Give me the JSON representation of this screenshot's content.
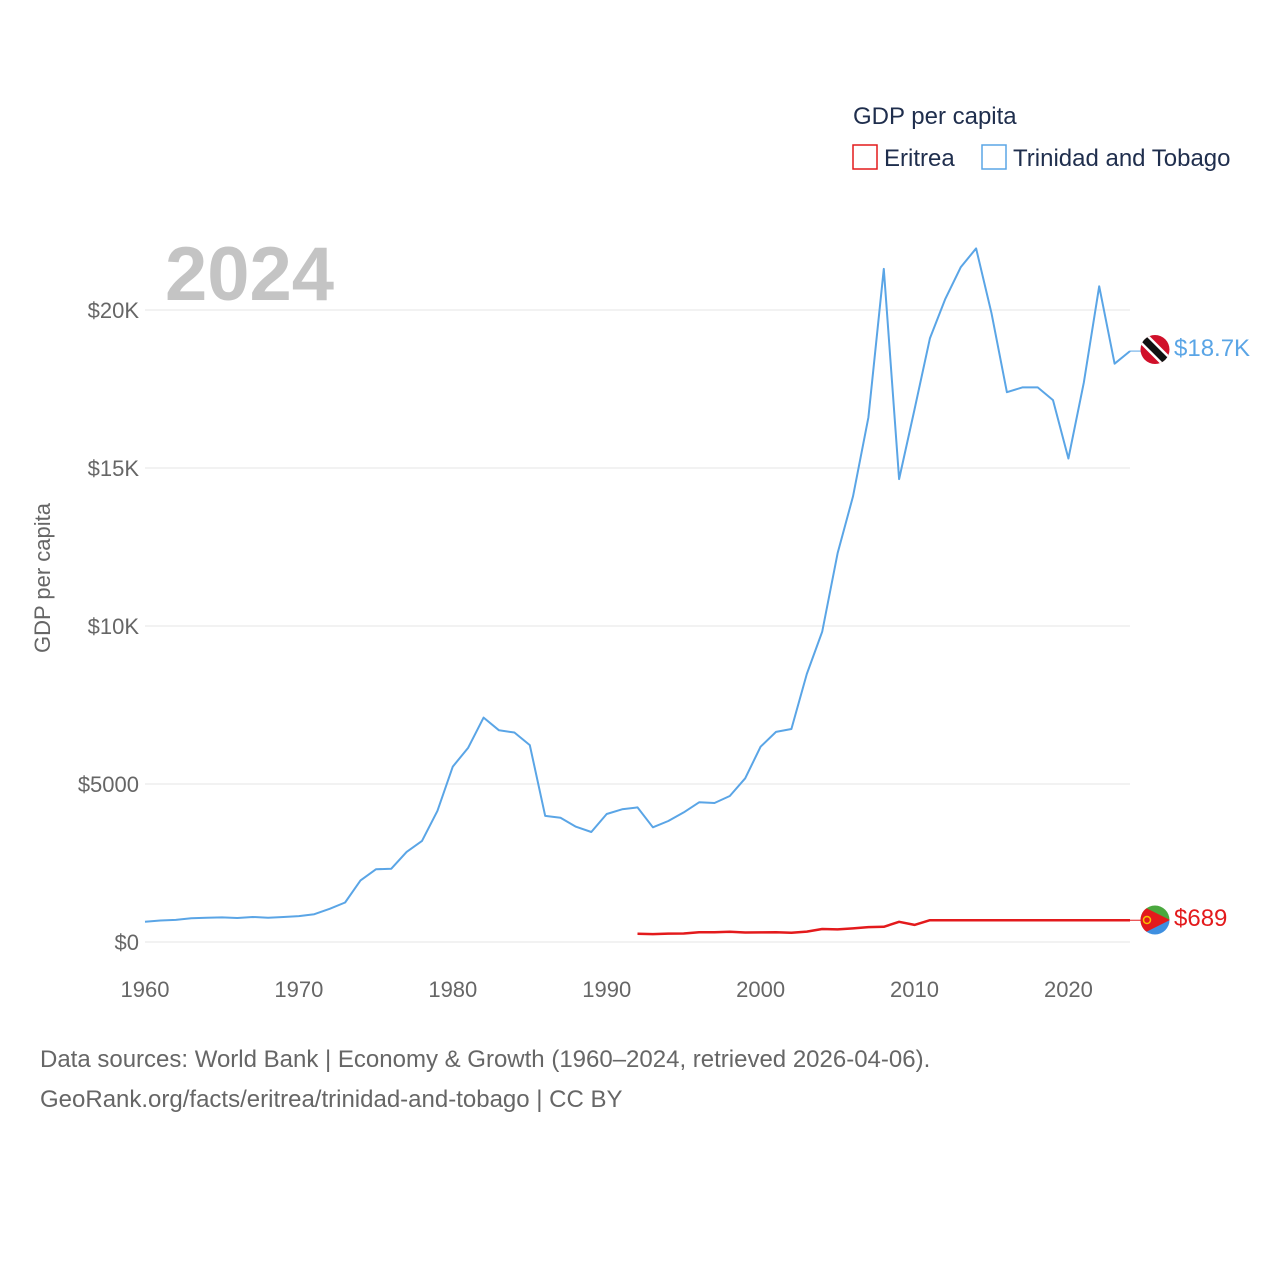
{
  "chart_data": {
    "type": "line",
    "year_watermark": "2024",
    "ylabel": "GDP per capita",
    "ylim": [
      0,
      23000
    ],
    "xlim": [
      1960,
      2024
    ],
    "x_ticks": [
      {
        "value": 1960,
        "label": "1960"
      },
      {
        "value": 1970,
        "label": "1970"
      },
      {
        "value": 1980,
        "label": "1980"
      },
      {
        "value": 1990,
        "label": "1990"
      },
      {
        "value": 2000,
        "label": "2000"
      },
      {
        "value": 2010,
        "label": "2010"
      },
      {
        "value": 2020,
        "label": "2020"
      }
    ],
    "y_ticks": [
      {
        "value": 0,
        "label": "$0"
      },
      {
        "value": 5000,
        "label": "$5000"
      },
      {
        "value": 10000,
        "label": "$10K"
      },
      {
        "value": 15000,
        "label": "$15K"
      },
      {
        "value": 20000,
        "label": "$20K"
      }
    ],
    "legend": {
      "title": "GDP per capita",
      "position": "top-right",
      "entries": [
        {
          "name": "Eritrea",
          "color": "#e31a1c"
        },
        {
          "name": "Trinidad and Tobago",
          "color": "#5aa5e6"
        }
      ]
    },
    "series": [
      {
        "name": "Trinidad and Tobago",
        "color": "#5aa5e6",
        "end_label": "$18.7K",
        "flag": "trinidad-and-tobago-flag",
        "points": [
          [
            1960,
            640
          ],
          [
            1961,
            680
          ],
          [
            1962,
            700
          ],
          [
            1963,
            750
          ],
          [
            1964,
            770
          ],
          [
            1965,
            780
          ],
          [
            1966,
            760
          ],
          [
            1967,
            790
          ],
          [
            1968,
            770
          ],
          [
            1969,
            790
          ],
          [
            1970,
            820
          ],
          [
            1971,
            880
          ],
          [
            1972,
            1050
          ],
          [
            1973,
            1250
          ],
          [
            1974,
            1950
          ],
          [
            1975,
            2300
          ],
          [
            1976,
            2320
          ],
          [
            1977,
            2850
          ],
          [
            1978,
            3200
          ],
          [
            1979,
            4150
          ],
          [
            1980,
            5550
          ],
          [
            1981,
            6150
          ],
          [
            1982,
            7100
          ],
          [
            1983,
            6700
          ],
          [
            1984,
            6630
          ],
          [
            1985,
            6230
          ],
          [
            1986,
            3990
          ],
          [
            1987,
            3930
          ],
          [
            1988,
            3650
          ],
          [
            1989,
            3480
          ],
          [
            1990,
            4050
          ],
          [
            1991,
            4200
          ],
          [
            1992,
            4260
          ],
          [
            1993,
            3630
          ],
          [
            1994,
            3830
          ],
          [
            1995,
            4100
          ],
          [
            1996,
            4420
          ],
          [
            1997,
            4400
          ],
          [
            1998,
            4620
          ],
          [
            1999,
            5180
          ],
          [
            2000,
            6180
          ],
          [
            2001,
            6650
          ],
          [
            2002,
            6740
          ],
          [
            2003,
            8480
          ],
          [
            2004,
            9820
          ],
          [
            2005,
            12300
          ],
          [
            2006,
            14100
          ],
          [
            2007,
            16600
          ],
          [
            2008,
            21300
          ],
          [
            2009,
            14650
          ],
          [
            2010,
            16850
          ],
          [
            2011,
            19100
          ],
          [
            2012,
            20350
          ],
          [
            2013,
            21350
          ],
          [
            2014,
            21950
          ],
          [
            2015,
            19900
          ],
          [
            2016,
            17400
          ],
          [
            2017,
            17550
          ],
          [
            2018,
            17550
          ],
          [
            2019,
            17150
          ],
          [
            2020,
            15300
          ],
          [
            2021,
            17700
          ],
          [
            2022,
            20750
          ],
          [
            2023,
            18300
          ],
          [
            2024,
            18700
          ]
        ]
      },
      {
        "name": "Eritrea",
        "color": "#e31a1c",
        "end_label": "$689",
        "flag": "eritrea-flag",
        "points": [
          [
            1992,
            260
          ],
          [
            1993,
            250
          ],
          [
            1994,
            265
          ],
          [
            1995,
            270
          ],
          [
            1996,
            310
          ],
          [
            1997,
            310
          ],
          [
            1998,
            325
          ],
          [
            1999,
            300
          ],
          [
            2000,
            305
          ],
          [
            2001,
            310
          ],
          [
            2002,
            295
          ],
          [
            2003,
            330
          ],
          [
            2004,
            410
          ],
          [
            2005,
            400
          ],
          [
            2006,
            430
          ],
          [
            2007,
            470
          ],
          [
            2008,
            480
          ],
          [
            2009,
            640
          ],
          [
            2010,
            540
          ],
          [
            2011,
            689
          ],
          [
            2024,
            689
          ]
        ]
      }
    ]
  },
  "source": {
    "line1": "Data sources: World Bank | Economy & Growth (1960–2024, retrieved 2026-04-06).",
    "line2": "GeoRank.org/facts/eritrea/trinidad-and-tobago | CC BY"
  }
}
